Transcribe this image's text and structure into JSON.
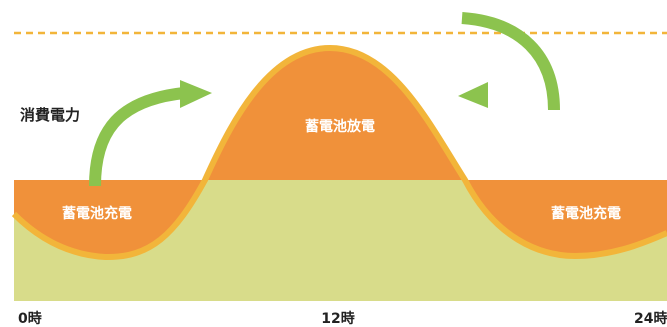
{
  "diagram": {
    "y_label": "消費電力",
    "time_labels": {
      "start": "0時",
      "mid": "12時",
      "end": "24時"
    },
    "regions": {
      "charge_left": "蓄電池充電",
      "discharge_center": "蓄電池放電",
      "charge_right": "蓄電池充電"
    },
    "colors": {
      "consumption_area": "#d8dc8a",
      "battery_area": "#f0913a",
      "curve_outline": "#f2b53a",
      "threshold_line": "#f2b53a",
      "arrow": "#8cc34e",
      "label_dark": "#222222",
      "label_light": "#ffffff"
    }
  }
}
